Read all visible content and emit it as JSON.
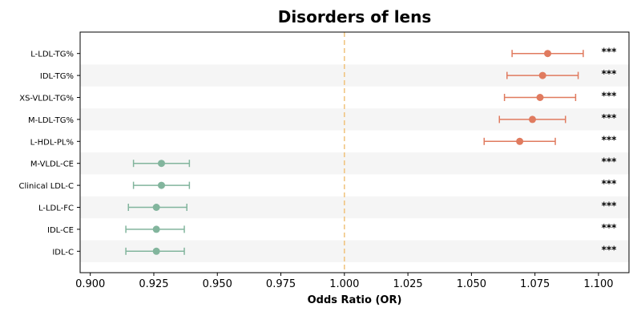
{
  "chart_data": {
    "type": "scatter",
    "subtype": "forest-plot",
    "title": "Disorders of lens",
    "xlabel": "Odds Ratio (OR)",
    "ylabel": "",
    "xlim": [
      0.896,
      1.112
    ],
    "x_ticks": [
      "0.900",
      "0.925",
      "0.950",
      "0.975",
      "1.000",
      "1.025",
      "1.050",
      "1.075",
      "1.100"
    ],
    "reference_line": 1.0,
    "reference_line_color": "#f0c27b",
    "row_band_color": "#f5f5f5",
    "colors": {
      "risk": "#e07b5f",
      "protective": "#82b59d"
    },
    "grid": false,
    "series": [
      {
        "label": "L-LDL-TG%",
        "or": 1.08,
        "ci_low": 1.066,
        "ci_high": 1.094,
        "significance": "***",
        "group": "risk"
      },
      {
        "label": "IDL-TG%",
        "or": 1.078,
        "ci_low": 1.064,
        "ci_high": 1.092,
        "significance": "***",
        "group": "risk"
      },
      {
        "label": "XS-VLDL-TG%",
        "or": 1.077,
        "ci_low": 1.063,
        "ci_high": 1.091,
        "significance": "***",
        "group": "risk"
      },
      {
        "label": "M-LDL-TG%",
        "or": 1.074,
        "ci_low": 1.061,
        "ci_high": 1.087,
        "significance": "***",
        "group": "risk"
      },
      {
        "label": "L-HDL-PL%",
        "or": 1.069,
        "ci_low": 1.055,
        "ci_high": 1.083,
        "significance": "***",
        "group": "risk"
      },
      {
        "label": "M-VLDL-CE",
        "or": 0.928,
        "ci_low": 0.917,
        "ci_high": 0.939,
        "significance": "***",
        "group": "protective"
      },
      {
        "label": "Clinical LDL-C",
        "or": 0.928,
        "ci_low": 0.917,
        "ci_high": 0.939,
        "significance": "***",
        "group": "protective"
      },
      {
        "label": "L-LDL-FC",
        "or": 0.926,
        "ci_low": 0.915,
        "ci_high": 0.938,
        "significance": "***",
        "group": "protective"
      },
      {
        "label": "IDL-CE",
        "or": 0.926,
        "ci_low": 0.914,
        "ci_high": 0.937,
        "significance": "***",
        "group": "protective"
      },
      {
        "label": "IDL-C",
        "or": 0.926,
        "ci_low": 0.914,
        "ci_high": 0.937,
        "significance": "***",
        "group": "protective"
      }
    ]
  }
}
